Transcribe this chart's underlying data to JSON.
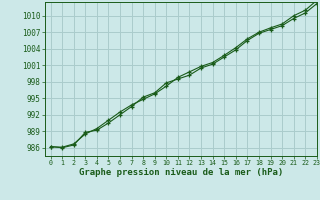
{
  "xlabel": "Graphe pression niveau de la mer (hPa)",
  "background_color": "#cce8e8",
  "grid_color": "#aacccc",
  "line_color": "#1a5c1a",
  "marker_color": "#1a5c1a",
  "xlim": [
    -0.5,
    23
  ],
  "ylim": [
    984.5,
    1012.5
  ],
  "yticks": [
    986,
    989,
    992,
    995,
    998,
    1001,
    1004,
    1007,
    1010
  ],
  "xticks": [
    0,
    1,
    2,
    3,
    4,
    5,
    6,
    7,
    8,
    9,
    10,
    11,
    12,
    13,
    14,
    15,
    16,
    17,
    18,
    19,
    20,
    21,
    22,
    23
  ],
  "line1_x": [
    0,
    1,
    2,
    3,
    4,
    5,
    6,
    7,
    8,
    9,
    10,
    11,
    12,
    13,
    14,
    15,
    16,
    17,
    18,
    19,
    20,
    21,
    22,
    23
  ],
  "line1_y": [
    986.2,
    986.0,
    986.5,
    988.8,
    989.2,
    990.5,
    992.0,
    993.5,
    995.2,
    996.0,
    997.8,
    998.5,
    999.2,
    1000.5,
    1001.2,
    1002.5,
    1003.8,
    1005.5,
    1006.8,
    1007.5,
    1008.2,
    1009.5,
    1010.5,
    1012.2
  ],
  "line2_x": [
    0,
    1,
    2,
    3,
    4,
    5,
    6,
    7,
    8,
    9,
    10,
    11,
    12,
    13,
    14,
    15,
    16,
    17,
    18,
    19,
    20,
    21,
    22,
    23
  ],
  "line2_y": [
    986.2,
    986.1,
    986.7,
    988.5,
    989.5,
    991.0,
    992.5,
    993.8,
    994.8,
    995.8,
    997.2,
    998.8,
    999.8,
    1000.8,
    1001.5,
    1002.8,
    1004.2,
    1005.8,
    1007.0,
    1007.8,
    1008.5,
    1010.0,
    1011.0,
    1012.8
  ]
}
